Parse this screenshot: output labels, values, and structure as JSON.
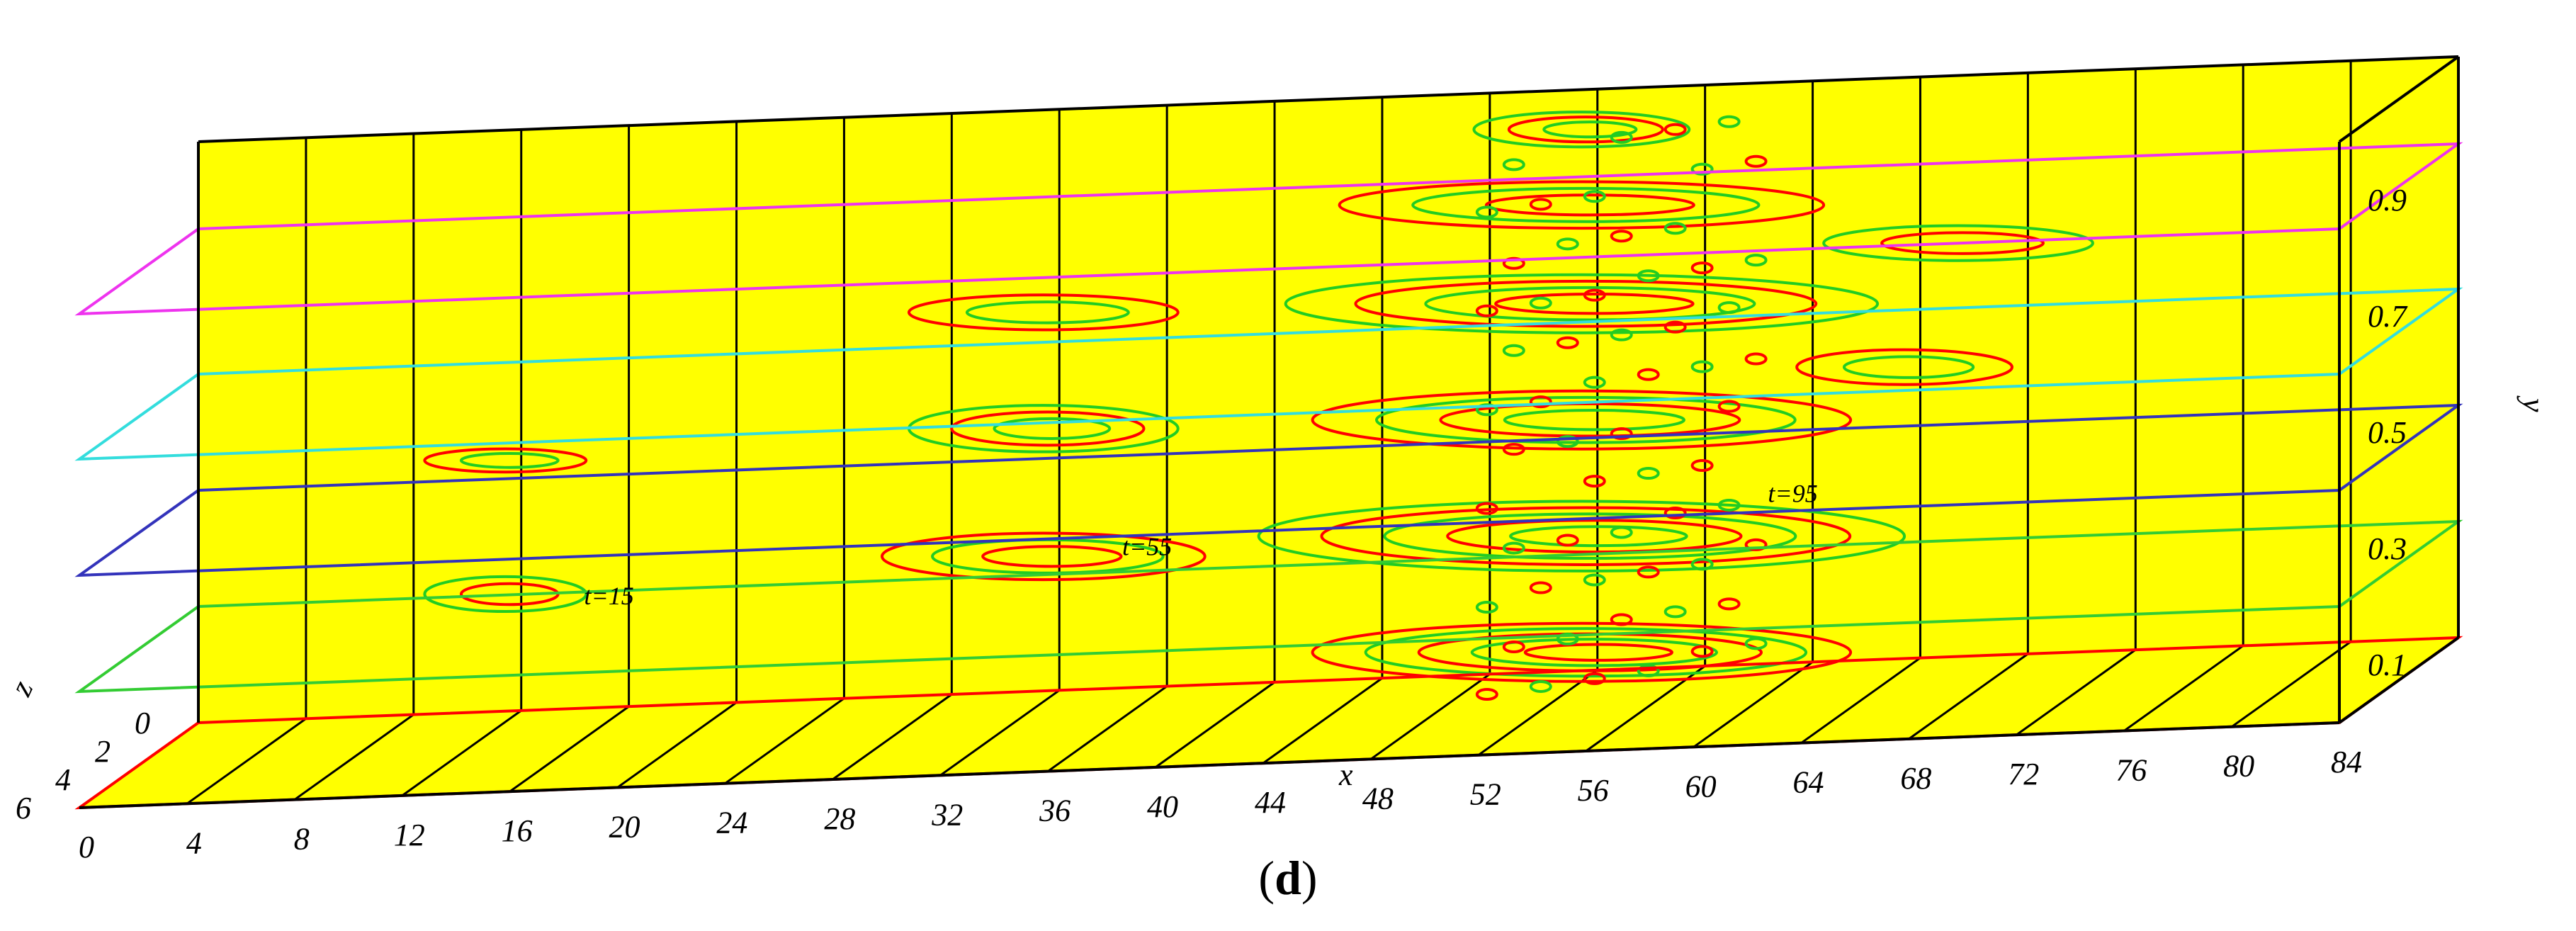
{
  "chart_data": {
    "type": "3d-contour",
    "caption": "(d)",
    "caption_letter": "d",
    "xlabel": "x",
    "ylabel": "y",
    "zlabel": "z",
    "x_ticks": [
      "0",
      "4",
      "8",
      "12",
      "16",
      "20",
      "24",
      "28",
      "32",
      "36",
      "40",
      "44",
      "48",
      "52",
      "56",
      "60",
      "64",
      "68",
      "72",
      "76",
      "80",
      "84"
    ],
    "y_ticks": [
      "0.1",
      "0.3",
      "0.5",
      "0.7",
      "0.9"
    ],
    "z_ticks": [
      "0",
      "2",
      "4",
      "6"
    ],
    "xlim": [
      0,
      84
    ],
    "ylim": [
      0,
      1.0
    ],
    "zlim": [
      0,
      7
    ],
    "background_color": "#ffff00",
    "slices": [
      {
        "y": 0.0,
        "color": "#ff0000"
      },
      {
        "y": 0.2,
        "color": "#33cc33"
      },
      {
        "y": 0.4,
        "color": "#3333bb"
      },
      {
        "y": 0.6,
        "color": "#33dddd"
      },
      {
        "y": 0.85,
        "color": "#ee33ee"
      }
    ],
    "contour_colors": [
      "#ff0000",
      "#22cc22"
    ],
    "annotations": [
      {
        "text": "t=15",
        "x": 16,
        "y": 0.2
      },
      {
        "text": "t=55",
        "x": 36,
        "y": 0.25
      },
      {
        "text": "t=95",
        "x": 60,
        "y": 0.3
      }
    ]
  }
}
